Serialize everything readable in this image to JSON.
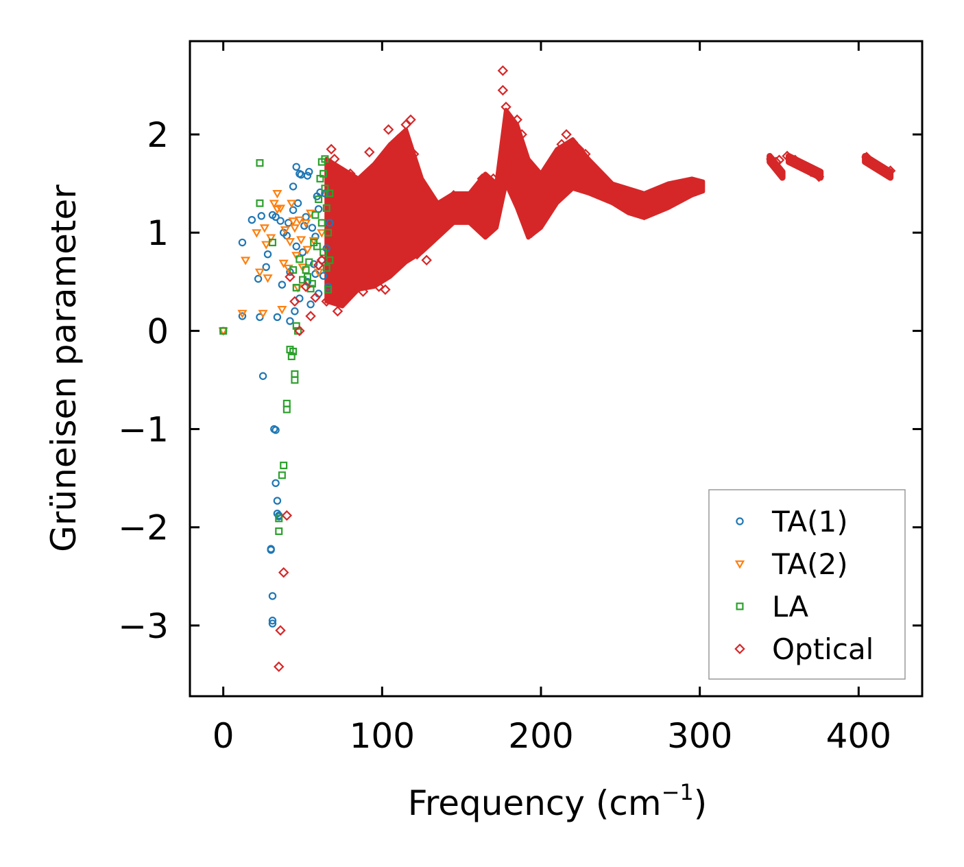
{
  "chart_data": {
    "type": "scatter",
    "xlabel": "Frequency (cm",
    "xlabel_superscript": "−1",
    "xlabel_suffix": ")",
    "ylabel": "Grüneisen parameter",
    "xlim": [
      -21,
      440
    ],
    "ylim": [
      -3.72,
      2.95
    ],
    "x_ticks": [
      {
        "value": 0,
        "label": "0"
      },
      {
        "value": 100,
        "label": "100"
      },
      {
        "value": 200,
        "label": "200"
      },
      {
        "value": 300,
        "label": "300"
      },
      {
        "value": 400,
        "label": "400"
      }
    ],
    "y_ticks": [
      {
        "value": 2,
        "label": "2"
      },
      {
        "value": 1,
        "label": "1"
      },
      {
        "value": 0,
        "label": "0"
      },
      {
        "value": -1,
        "label": "−1"
      },
      {
        "value": -2,
        "label": "−2"
      },
      {
        "value": -3,
        "label": "−3"
      }
    ],
    "legend_position": "lower-right",
    "series": [
      {
        "name": "TA(1)",
        "marker": "circle",
        "color": "#1f77b4",
        "points": [
          [
            0,
            0
          ],
          [
            12,
            0.15
          ],
          [
            12,
            0.9
          ],
          [
            18,
            1.13
          ],
          [
            22,
            0.53
          ],
          [
            23,
            0.14
          ],
          [
            24,
            1.17
          ],
          [
            25,
            -0.46
          ],
          [
            27,
            0.65
          ],
          [
            28,
            0.78
          ],
          [
            31,
            1.18
          ],
          [
            33,
            1.16
          ],
          [
            34,
            0.14
          ],
          [
            36,
            1.12
          ],
          [
            37,
            0.47
          ],
          [
            38,
            1.0
          ],
          [
            40,
            0.97
          ],
          [
            41,
            1.1
          ],
          [
            42,
            0.6
          ],
          [
            42,
            0.1
          ],
          [
            44,
            1.23
          ],
          [
            44,
            1.47
          ],
          [
            45,
            0.2
          ],
          [
            46,
            1.67
          ],
          [
            46,
            0.86
          ],
          [
            47,
            1.3
          ],
          [
            48,
            1.6
          ],
          [
            48,
            0.33
          ],
          [
            49,
            1.59
          ],
          [
            50,
            0.8
          ],
          [
            51,
            1.07
          ],
          [
            52,
            1.16
          ],
          [
            53,
            1.58
          ],
          [
            54,
            1.62
          ],
          [
            55,
            0.27
          ],
          [
            56,
            1.05
          ],
          [
            57,
            0.68
          ],
          [
            58,
            0.96
          ],
          [
            59,
            1.37
          ],
          [
            60,
            1.24
          ],
          [
            61,
            1.41
          ],
          [
            62,
            0.72
          ],
          [
            63,
            0.56
          ],
          [
            64,
            1.4
          ],
          [
            65,
            0.84
          ],
          [
            66,
            0.45
          ],
          [
            67,
            1.1
          ],
          [
            60,
            0.38
          ],
          [
            58,
            0.58
          ],
          [
            53,
            0.5
          ],
          [
            30,
            -2.22
          ],
          [
            30,
            -2.23
          ],
          [
            31,
            -2.7
          ],
          [
            31,
            -2.95
          ],
          [
            31,
            -2.98
          ],
          [
            32,
            -1.0
          ],
          [
            33,
            -1.01
          ],
          [
            33,
            -1.55
          ],
          [
            34,
            -1.73
          ],
          [
            34,
            -1.86
          ],
          [
            35,
            -1.89
          ],
          [
            35,
            -1.88
          ]
        ]
      },
      {
        "name": "TA(2)",
        "marker": "triangle-down",
        "color": "#ff7f0e",
        "points": [
          [
            0,
            0
          ],
          [
            12,
            0.18
          ],
          [
            14,
            0.72
          ],
          [
            21,
            1.0
          ],
          [
            23,
            0.6
          ],
          [
            25,
            0.18
          ],
          [
            26,
            1.05
          ],
          [
            27,
            0.88
          ],
          [
            28,
            0.54
          ],
          [
            30,
            0.95
          ],
          [
            32,
            1.3
          ],
          [
            34,
            1.4
          ],
          [
            34,
            1.24
          ],
          [
            36,
            1.25
          ],
          [
            37,
            0.22
          ],
          [
            38,
            0.69
          ],
          [
            39,
            1.03
          ],
          [
            41,
            0.64
          ],
          [
            42,
            0.91
          ],
          [
            43,
            1.3
          ],
          [
            44,
            1.12
          ],
          [
            45,
            1.05
          ],
          [
            46,
            0.77
          ],
          [
            47,
            0.44
          ],
          [
            48,
            1.13
          ],
          [
            49,
            0.93
          ],
          [
            50,
            0.65
          ],
          [
            52,
            1.1
          ],
          [
            53,
            0.83
          ],
          [
            55,
            1.2
          ],
          [
            57,
            0.92
          ],
          [
            60,
            0.6
          ],
          [
            62,
            1.0
          ]
        ]
      },
      {
        "name": "LA",
        "marker": "square",
        "color": "#2ca02c",
        "points": [
          [
            0,
            0
          ],
          [
            23,
            1.71
          ],
          [
            23,
            1.3
          ],
          [
            31,
            0.9
          ],
          [
            35,
            -2.04
          ],
          [
            35,
            -1.91
          ],
          [
            37,
            -1.47
          ],
          [
            38,
            -1.37
          ],
          [
            40,
            -0.74
          ],
          [
            40,
            -0.8
          ],
          [
            42,
            -0.19
          ],
          [
            43,
            -0.26
          ],
          [
            44,
            -0.21
          ],
          [
            44,
            0.62
          ],
          [
            45,
            -0.5
          ],
          [
            45,
            -0.44
          ],
          [
            46,
            0.05
          ],
          [
            46,
            0.44
          ],
          [
            47,
            0.0
          ],
          [
            48,
            0.73
          ],
          [
            50,
            0.52
          ],
          [
            52,
            0.62
          ],
          [
            53,
            0.55
          ],
          [
            54,
            0.7
          ],
          [
            55,
            0.43
          ],
          [
            56,
            0.48
          ],
          [
            57,
            0.9
          ],
          [
            58,
            1.18
          ],
          [
            59,
            0.86
          ],
          [
            60,
            1.34
          ],
          [
            61,
            1.55
          ],
          [
            62,
            1.72
          ],
          [
            62,
            1.1
          ],
          [
            63,
            1.6
          ],
          [
            63,
            0.8
          ],
          [
            64,
            1.45
          ],
          [
            64,
            1.75
          ],
          [
            65,
            1.25
          ],
          [
            65,
            0.64
          ],
          [
            66,
            1.0
          ],
          [
            66,
            0.42
          ],
          [
            67,
            1.4
          ],
          [
            67,
            0.72
          ]
        ]
      },
      {
        "name": "Optical",
        "marker": "diamond",
        "color": "#d62728",
        "points": [
          [
            35,
            -3.42
          ],
          [
            36,
            -3.05
          ],
          [
            38,
            -2.46
          ],
          [
            40,
            -1.88
          ],
          [
            42,
            0.55
          ],
          [
            45,
            0.3
          ],
          [
            48,
            0.0
          ],
          [
            52,
            0.45
          ],
          [
            55,
            0.15
          ],
          [
            58,
            0.34
          ],
          [
            60,
            0.67
          ],
          [
            62,
            0.72
          ],
          [
            65,
            0.3
          ],
          [
            68,
            1.85
          ],
          [
            70,
            1.75
          ],
          [
            72,
            0.2
          ],
          [
            75,
            1.55
          ],
          [
            75,
            0.45
          ],
          [
            80,
            1.6
          ],
          [
            82,
            0.52
          ],
          [
            85,
            1.35
          ],
          [
            88,
            0.4
          ],
          [
            90,
            1.45
          ],
          [
            92,
            1.82
          ],
          [
            95,
            0.48
          ],
          [
            98,
            0.45
          ],
          [
            100,
            1.3
          ],
          [
            102,
            0.42
          ],
          [
            104,
            2.05
          ],
          [
            106,
            1.8
          ],
          [
            108,
            1.4
          ],
          [
            110,
            1.95
          ],
          [
            112,
            1.55
          ],
          [
            115,
            2.1
          ],
          [
            118,
            2.15
          ],
          [
            120,
            1.8
          ],
          [
            122,
            0.78
          ],
          [
            125,
            1.35
          ],
          [
            128,
            0.72
          ],
          [
            130,
            1.3
          ],
          [
            135,
            1.05
          ],
          [
            140,
            1.2
          ],
          [
            145,
            1.38
          ],
          [
            150,
            1.3
          ],
          [
            155,
            1.18
          ],
          [
            160,
            1.45
          ],
          [
            163,
            1.55
          ],
          [
            165,
            1.0
          ],
          [
            168,
            1.4
          ],
          [
            170,
            1.55
          ],
          [
            172,
            1.2
          ],
          [
            176,
            2.65
          ],
          [
            176,
            2.45
          ],
          [
            178,
            2.28
          ],
          [
            180,
            2.05
          ],
          [
            182,
            1.8
          ],
          [
            185,
            2.15
          ],
          [
            188,
            2.0
          ],
          [
            190,
            1.7
          ],
          [
            192,
            1.45
          ],
          [
            194,
            1.0
          ],
          [
            196,
            1.25
          ],
          [
            200,
            1.15
          ],
          [
            205,
            1.45
          ],
          [
            210,
            1.7
          ],
          [
            213,
            1.9
          ],
          [
            216,
            2.0
          ],
          [
            220,
            1.92
          ],
          [
            224,
            1.85
          ],
          [
            228,
            1.8
          ],
          [
            232,
            1.65
          ],
          [
            236,
            1.55
          ],
          [
            240,
            1.45
          ],
          [
            245,
            1.4
          ],
          [
            250,
            1.35
          ],
          [
            255,
            1.3
          ],
          [
            258,
            1.25
          ],
          [
            262,
            1.2
          ],
          [
            265,
            1.18
          ],
          [
            270,
            1.3
          ],
          [
            275,
            1.38
          ],
          [
            280,
            1.42
          ],
          [
            285,
            1.45
          ],
          [
            290,
            1.5
          ],
          [
            295,
            1.48
          ],
          [
            300,
            1.47
          ],
          [
            345,
            1.75
          ],
          [
            348,
            1.72
          ],
          [
            350,
            1.74
          ],
          [
            355,
            1.78
          ],
          [
            360,
            1.74
          ],
          [
            365,
            1.68
          ],
          [
            370,
            1.62
          ],
          [
            375,
            1.57
          ],
          [
            405,
            1.77
          ],
          [
            410,
            1.7
          ],
          [
            415,
            1.65
          ],
          [
            420,
            1.63
          ]
        ]
      }
    ]
  }
}
